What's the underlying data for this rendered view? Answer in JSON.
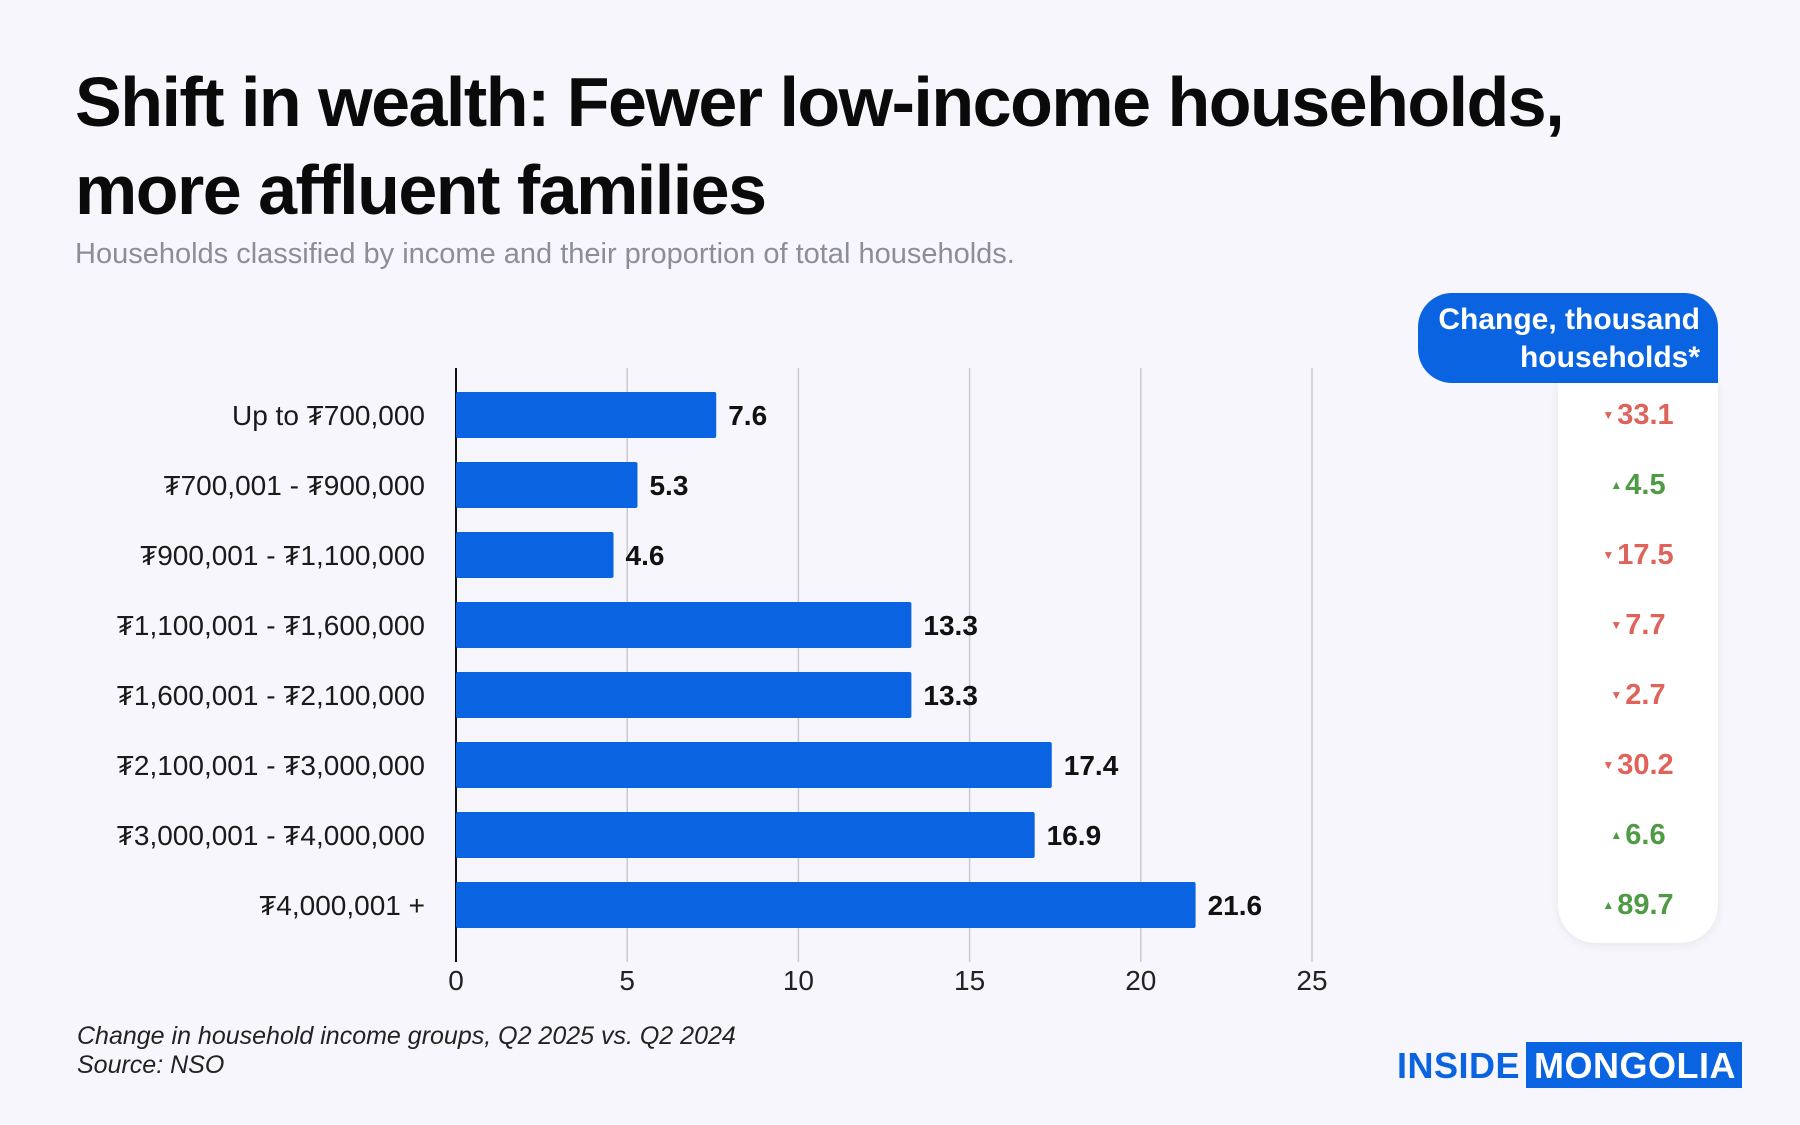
{
  "title": "Shift in wealth: Fewer low-income households, more affluent families",
  "subtitle": "Households classified by income and their proportion of total households.",
  "change_header": "Change, thousand households*",
  "footnote": {
    "line1": "Change in household income groups, Q2 2025 vs. Q2 2024",
    "line2": "Source: NSO"
  },
  "logo": {
    "part1": "INSIDE",
    "part2": "MONGOLIA"
  },
  "colors": {
    "bar": "#0a63e0",
    "up": "#4f9a45",
    "down": "#e0635a",
    "grid": "#c9c9cf"
  },
  "chart_data": {
    "type": "bar",
    "orientation": "horizontal",
    "categories": [
      "Up to ₮700,000",
      "₮700,001 - ₮900,000",
      "₮900,001 - ₮1,100,000",
      "₮1,100,001 - ₮1,600,000",
      "₮1,600,001 - ₮2,100,000",
      "₮2,100,001 - ₮3,000,000",
      "₮3,000,001 - ₮4,000,000",
      "₮4,000,001 +"
    ],
    "values": [
      7.6,
      5.3,
      4.6,
      13.3,
      13.3,
      17.4,
      16.9,
      21.6
    ],
    "change": [
      {
        "value": "33.1",
        "direction": "down"
      },
      {
        "value": "4.5",
        "direction": "up"
      },
      {
        "value": "17.5",
        "direction": "down"
      },
      {
        "value": "7.7",
        "direction": "down"
      },
      {
        "value": "2.7",
        "direction": "down"
      },
      {
        "value": "30.2",
        "direction": "down"
      },
      {
        "value": "6.6",
        "direction": "up"
      },
      {
        "value": "89.7",
        "direction": "up"
      }
    ],
    "xlim": [
      0,
      25
    ],
    "xticks": [
      0,
      5,
      10,
      15,
      20,
      25
    ],
    "grid": true
  }
}
